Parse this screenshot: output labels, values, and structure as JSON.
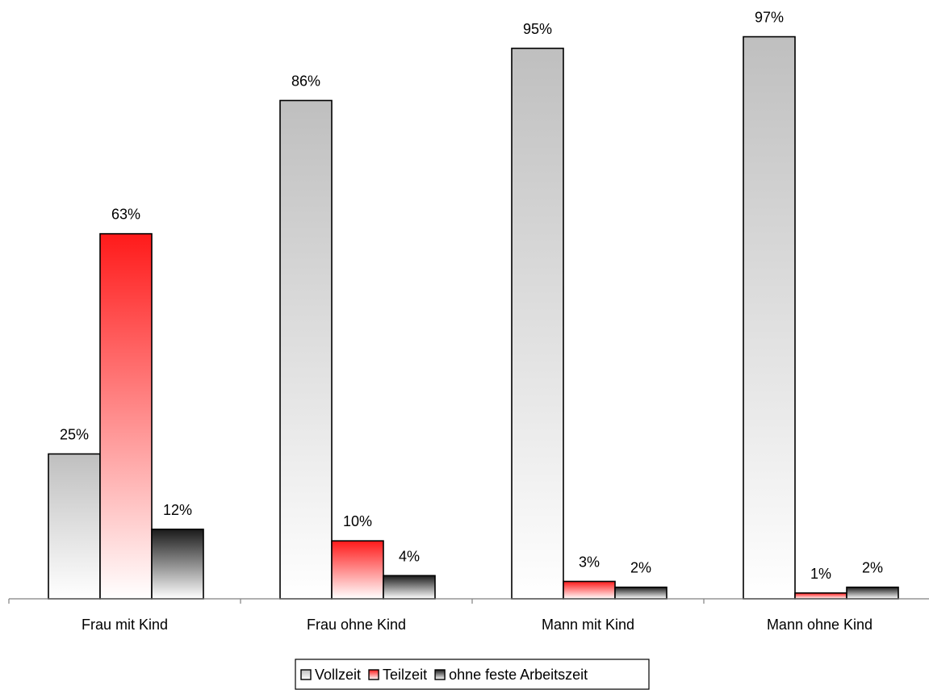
{
  "chart_data": {
    "type": "bar",
    "title": "",
    "xlabel": "",
    "ylabel": "",
    "ylim": [
      0,
      100
    ],
    "grid": false,
    "legend_position": "bottom",
    "value_suffix": "%",
    "categories": [
      "Frau mit Kind",
      "Frau ohne Kind",
      "Mann mit Kind",
      "Mann ohne Kind"
    ],
    "series": [
      {
        "name": "Vollzeit",
        "values": [
          25,
          86,
          95,
          97
        ],
        "color": "#bfbfbf",
        "color_light": "#ffffff"
      },
      {
        "name": "Teilzeit",
        "values": [
          63,
          10,
          3,
          1
        ],
        "color": "#ff1a1a",
        "color_light": "#ffffff"
      },
      {
        "name": "ohne feste Arbeitszeit",
        "values": [
          12,
          4,
          2,
          2
        ],
        "color": "#1a1a1a",
        "color_light": "#ffffff"
      }
    ]
  }
}
